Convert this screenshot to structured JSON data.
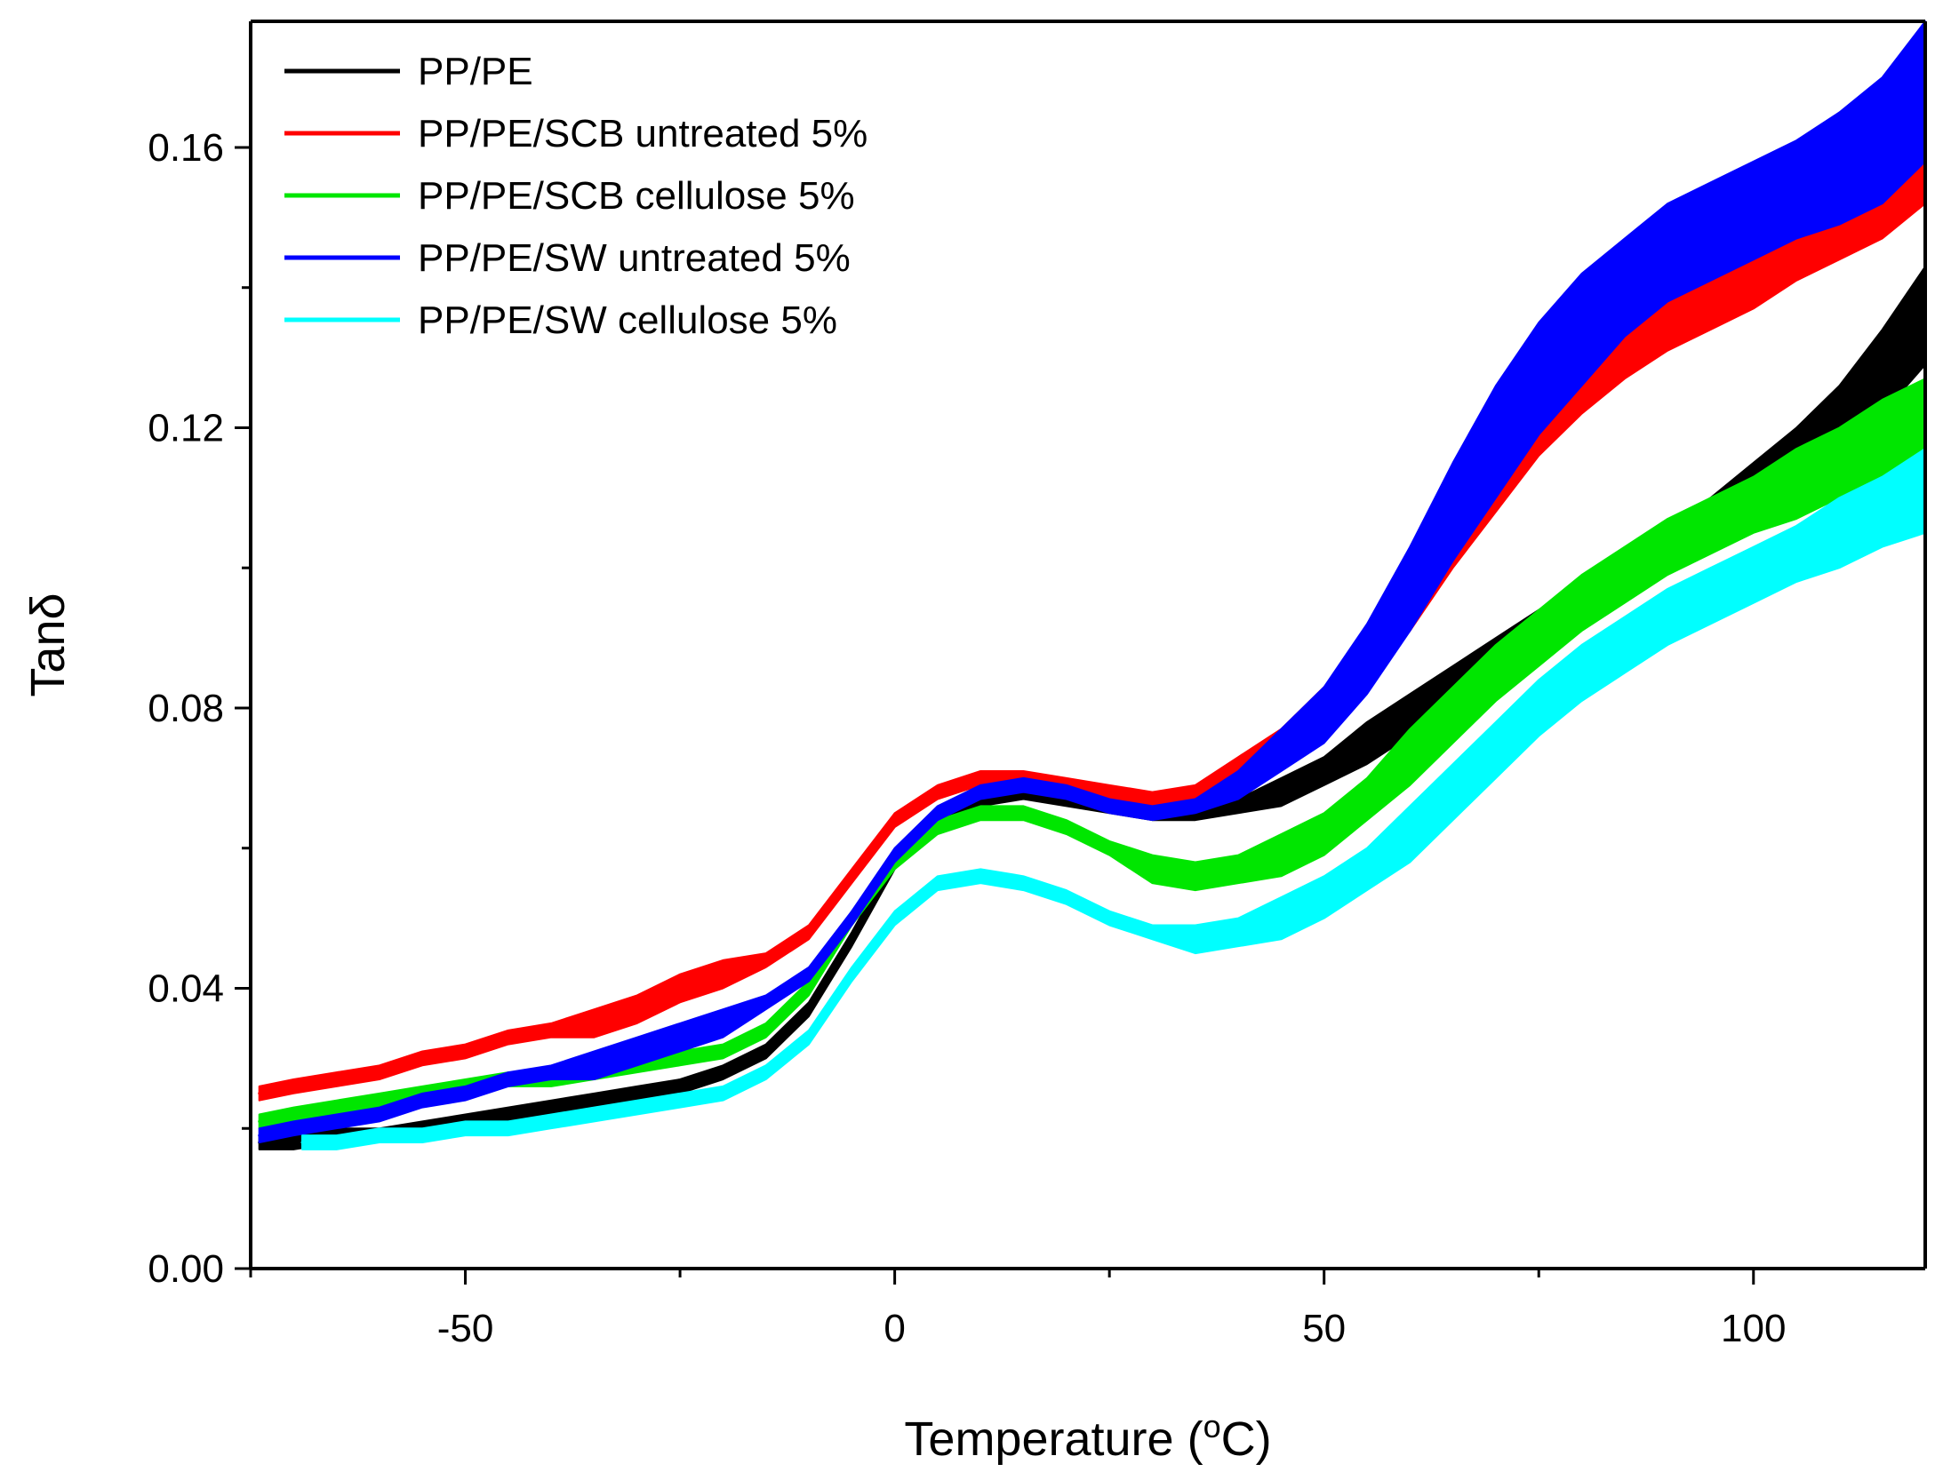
{
  "chart_data": {
    "type": "line",
    "title": "",
    "xlabel": "Temperature (",
    "xlabel_sup": "o",
    "xlabel_suffix": "C)",
    "ylabel": "Tanδ",
    "xlim": [
      -75,
      120
    ],
    "ylim": [
      0.0,
      0.178
    ],
    "xticks": [
      {
        "value": -50,
        "label": "-50"
      },
      {
        "value": 0,
        "label": "0"
      },
      {
        "value": 50,
        "label": "50"
      },
      {
        "value": 100,
        "label": "100"
      }
    ],
    "xminor": [
      -75,
      -25,
      25,
      75
    ],
    "yticks": [
      {
        "value": 0.0,
        "label": "0.00"
      },
      {
        "value": 0.04,
        "label": "0.04"
      },
      {
        "value": 0.08,
        "label": "0.08"
      },
      {
        "value": 0.12,
        "label": "0.12"
      },
      {
        "value": 0.16,
        "label": "0.16"
      }
    ],
    "yminor": [
      0.02,
      0.06,
      0.1,
      0.14
    ],
    "legend_position": "top-left",
    "grid": false,
    "series": [
      {
        "name": "PP/PE",
        "color": "#000000",
        "x": [
          -74,
          -70,
          -65,
          -60,
          -55,
          -50,
          -45,
          -40,
          -35,
          -30,
          -25,
          -20,
          -15,
          -10,
          -5,
          0,
          5,
          10,
          15,
          20,
          25,
          30,
          35,
          40,
          45,
          50,
          55,
          60,
          65,
          70,
          75,
          80,
          85,
          90,
          95,
          100,
          105,
          110,
          115,
          120
        ],
        "y": [
          0.018,
          0.018,
          0.019,
          0.019,
          0.02,
          0.021,
          0.022,
          0.023,
          0.024,
          0.025,
          0.026,
          0.028,
          0.031,
          0.037,
          0.047,
          0.058,
          0.064,
          0.067,
          0.068,
          0.067,
          0.066,
          0.065,
          0.065,
          0.066,
          0.068,
          0.071,
          0.075,
          0.079,
          0.083,
          0.087,
          0.091,
          0.095,
          0.099,
          0.103,
          0.107,
          0.111,
          0.116,
          0.121,
          0.128,
          0.136
        ],
        "spread": [
          0.001,
          0.001,
          0.001,
          0.001,
          0.001,
          0.001,
          0.001,
          0.001,
          0.001,
          0.001,
          0.001,
          0.001,
          0.001,
          0.001,
          0.001,
          0.001,
          0.001,
          0.001,
          0.001,
          0.001,
          0.001,
          0.001,
          0.001,
          0.001,
          0.002,
          0.002,
          0.003,
          0.003,
          0.003,
          0.003,
          0.003,
          0.003,
          0.003,
          0.003,
          0.003,
          0.004,
          0.004,
          0.005,
          0.006,
          0.007
        ]
      },
      {
        "name": "PP/PE/SCB untreated 5%",
        "color": "#ff0000",
        "x": [
          -74,
          -70,
          -65,
          -60,
          -55,
          -50,
          -45,
          -40,
          -35,
          -30,
          -25,
          -20,
          -15,
          -10,
          -5,
          0,
          5,
          10,
          15,
          20,
          25,
          30,
          35,
          40,
          45,
          50,
          55,
          60,
          65,
          70,
          75,
          80,
          85,
          90,
          95,
          100,
          105,
          110,
          115,
          120
        ],
        "y": [
          0.025,
          0.026,
          0.027,
          0.028,
          0.03,
          0.031,
          0.033,
          0.034,
          0.035,
          0.037,
          0.04,
          0.042,
          0.044,
          0.048,
          0.056,
          0.064,
          0.068,
          0.07,
          0.07,
          0.069,
          0.068,
          0.067,
          0.068,
          0.071,
          0.075,
          0.08,
          0.087,
          0.095,
          0.104,
          0.113,
          0.121,
          0.127,
          0.132,
          0.136,
          0.139,
          0.142,
          0.146,
          0.149,
          0.153,
          0.158
        ],
        "spread": [
          0.001,
          0.001,
          0.001,
          0.001,
          0.001,
          0.001,
          0.001,
          0.001,
          0.002,
          0.002,
          0.002,
          0.002,
          0.001,
          0.001,
          0.001,
          0.001,
          0.001,
          0.001,
          0.001,
          0.001,
          0.001,
          0.001,
          0.001,
          0.002,
          0.002,
          0.003,
          0.003,
          0.004,
          0.004,
          0.005,
          0.005,
          0.005,
          0.005,
          0.005,
          0.005,
          0.005,
          0.005,
          0.005,
          0.006,
          0.006
        ]
      },
      {
        "name": "PP/PE/SCB cellulose 5%",
        "color": "#00e600",
        "x": [
          -74,
          -70,
          -65,
          -60,
          -55,
          -50,
          -45,
          -40,
          -35,
          -30,
          -25,
          -20,
          -15,
          -10,
          -5,
          0,
          5,
          10,
          15,
          20,
          25,
          30,
          35,
          40,
          45,
          50,
          55,
          60,
          65,
          70,
          75,
          80,
          85,
          90,
          95,
          100,
          105,
          110,
          115,
          120
        ],
        "y": [
          0.021,
          0.022,
          0.023,
          0.024,
          0.025,
          0.026,
          0.027,
          0.027,
          0.028,
          0.029,
          0.03,
          0.031,
          0.034,
          0.04,
          0.05,
          0.058,
          0.063,
          0.065,
          0.065,
          0.063,
          0.06,
          0.057,
          0.056,
          0.057,
          0.059,
          0.062,
          0.067,
          0.073,
          0.079,
          0.085,
          0.09,
          0.095,
          0.099,
          0.103,
          0.106,
          0.109,
          0.112,
          0.115,
          0.118,
          0.121
        ],
        "spread": [
          0.001,
          0.001,
          0.001,
          0.001,
          0.001,
          0.001,
          0.001,
          0.001,
          0.001,
          0.001,
          0.001,
          0.001,
          0.001,
          0.001,
          0.001,
          0.001,
          0.001,
          0.001,
          0.001,
          0.001,
          0.001,
          0.002,
          0.002,
          0.002,
          0.003,
          0.003,
          0.003,
          0.004,
          0.004,
          0.004,
          0.004,
          0.004,
          0.004,
          0.004,
          0.004,
          0.004,
          0.005,
          0.005,
          0.006,
          0.006
        ]
      },
      {
        "name": "PP/PE/SW untreated 5%",
        "color": "#0000ff",
        "x": [
          -74,
          -70,
          -65,
          -60,
          -55,
          -50,
          -45,
          -40,
          -35,
          -30,
          -25,
          -20,
          -15,
          -10,
          -5,
          0,
          5,
          10,
          15,
          20,
          25,
          30,
          35,
          40,
          45,
          50,
          55,
          60,
          65,
          70,
          75,
          80,
          85,
          90,
          95,
          100,
          105,
          110,
          115,
          120
        ],
        "y": [
          0.019,
          0.02,
          0.021,
          0.022,
          0.024,
          0.025,
          0.027,
          0.028,
          0.029,
          0.031,
          0.033,
          0.035,
          0.038,
          0.042,
          0.05,
          0.059,
          0.065,
          0.068,
          0.069,
          0.068,
          0.066,
          0.065,
          0.066,
          0.069,
          0.074,
          0.079,
          0.087,
          0.097,
          0.108,
          0.118,
          0.127,
          0.134,
          0.14,
          0.145,
          0.148,
          0.151,
          0.154,
          0.157,
          0.161,
          0.168
        ],
        "spread": [
          0.001,
          0.001,
          0.001,
          0.001,
          0.001,
          0.001,
          0.001,
          0.001,
          0.002,
          0.002,
          0.002,
          0.002,
          0.001,
          0.001,
          0.001,
          0.001,
          0.001,
          0.001,
          0.001,
          0.001,
          0.001,
          0.001,
          0.001,
          0.002,
          0.003,
          0.004,
          0.005,
          0.006,
          0.007,
          0.008,
          0.008,
          0.008,
          0.007,
          0.007,
          0.007,
          0.007,
          0.007,
          0.008,
          0.009,
          0.01
        ]
      },
      {
        "name": "PP/PE/SW cellulose 5%",
        "color": "#00ffff",
        "x": [
          -69,
          -65,
          -60,
          -55,
          -50,
          -45,
          -40,
          -35,
          -30,
          -25,
          -20,
          -15,
          -10,
          -5,
          0,
          5,
          10,
          15,
          20,
          25,
          30,
          35,
          40,
          45,
          50,
          55,
          60,
          65,
          70,
          75,
          80,
          85,
          90,
          95,
          100,
          105,
          110,
          115,
          120
        ],
        "y": [
          0.018,
          0.018,
          0.019,
          0.019,
          0.02,
          0.02,
          0.021,
          0.022,
          0.023,
          0.024,
          0.025,
          0.028,
          0.033,
          0.042,
          0.05,
          0.055,
          0.056,
          0.055,
          0.053,
          0.05,
          0.048,
          0.047,
          0.048,
          0.05,
          0.053,
          0.057,
          0.062,
          0.068,
          0.074,
          0.08,
          0.085,
          0.089,
          0.093,
          0.096,
          0.099,
          0.102,
          0.105,
          0.108,
          0.111
        ],
        "spread": [
          0.001,
          0.001,
          0.001,
          0.001,
          0.001,
          0.001,
          0.001,
          0.001,
          0.001,
          0.001,
          0.001,
          0.001,
          0.001,
          0.001,
          0.001,
          0.001,
          0.001,
          0.001,
          0.001,
          0.001,
          0.001,
          0.002,
          0.002,
          0.003,
          0.003,
          0.003,
          0.004,
          0.004,
          0.004,
          0.004,
          0.004,
          0.004,
          0.004,
          0.004,
          0.004,
          0.004,
          0.005,
          0.005,
          0.006
        ]
      }
    ]
  }
}
